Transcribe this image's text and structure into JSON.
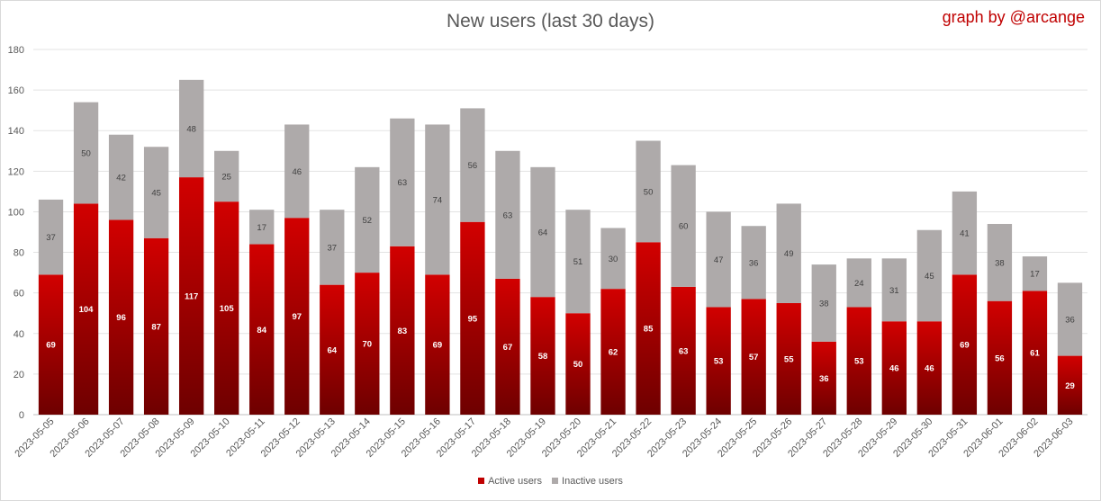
{
  "credit": "graph by @arcange",
  "chart_data": {
    "type": "bar",
    "stacked": true,
    "title": "New users (last 30 days)",
    "xlabel": "",
    "ylabel": "",
    "ylim": [
      0,
      180
    ],
    "yticks": [
      0,
      20,
      40,
      60,
      80,
      100,
      120,
      140,
      160,
      180
    ],
    "grid": true,
    "legend_position": "bottom",
    "categories": [
      "2023-05-05",
      "2023-05-06",
      "2023-05-07",
      "2023-05-08",
      "2023-05-09",
      "2023-05-10",
      "2023-05-11",
      "2023-05-12",
      "2023-05-13",
      "2023-05-14",
      "2023-05-15",
      "2023-05-16",
      "2023-05-17",
      "2023-05-18",
      "2023-05-19",
      "2023-05-20",
      "2023-05-21",
      "2023-05-22",
      "2023-05-23",
      "2023-05-24",
      "2023-05-25",
      "2023-05-26",
      "2023-05-27",
      "2023-05-28",
      "2023-05-29",
      "2023-05-30",
      "2023-05-31",
      "2023-06-01",
      "2023-06-02",
      "2023-06-03"
    ],
    "series": [
      {
        "name": "Active users",
        "color": "#c00000",
        "values": [
          69,
          104,
          96,
          87,
          117,
          105,
          84,
          97,
          64,
          70,
          83,
          69,
          95,
          67,
          58,
          50,
          62,
          85,
          63,
          53,
          57,
          55,
          36,
          53,
          46,
          46,
          69,
          56,
          61,
          29
        ]
      },
      {
        "name": "Inactive users",
        "color": "#aeaaaa",
        "values": [
          37,
          50,
          42,
          45,
          48,
          25,
          17,
          46,
          37,
          52,
          63,
          74,
          56,
          63,
          64,
          51,
          30,
          50,
          60,
          47,
          36,
          49,
          38,
          24,
          31,
          45,
          41,
          38,
          17,
          36
        ]
      }
    ]
  }
}
